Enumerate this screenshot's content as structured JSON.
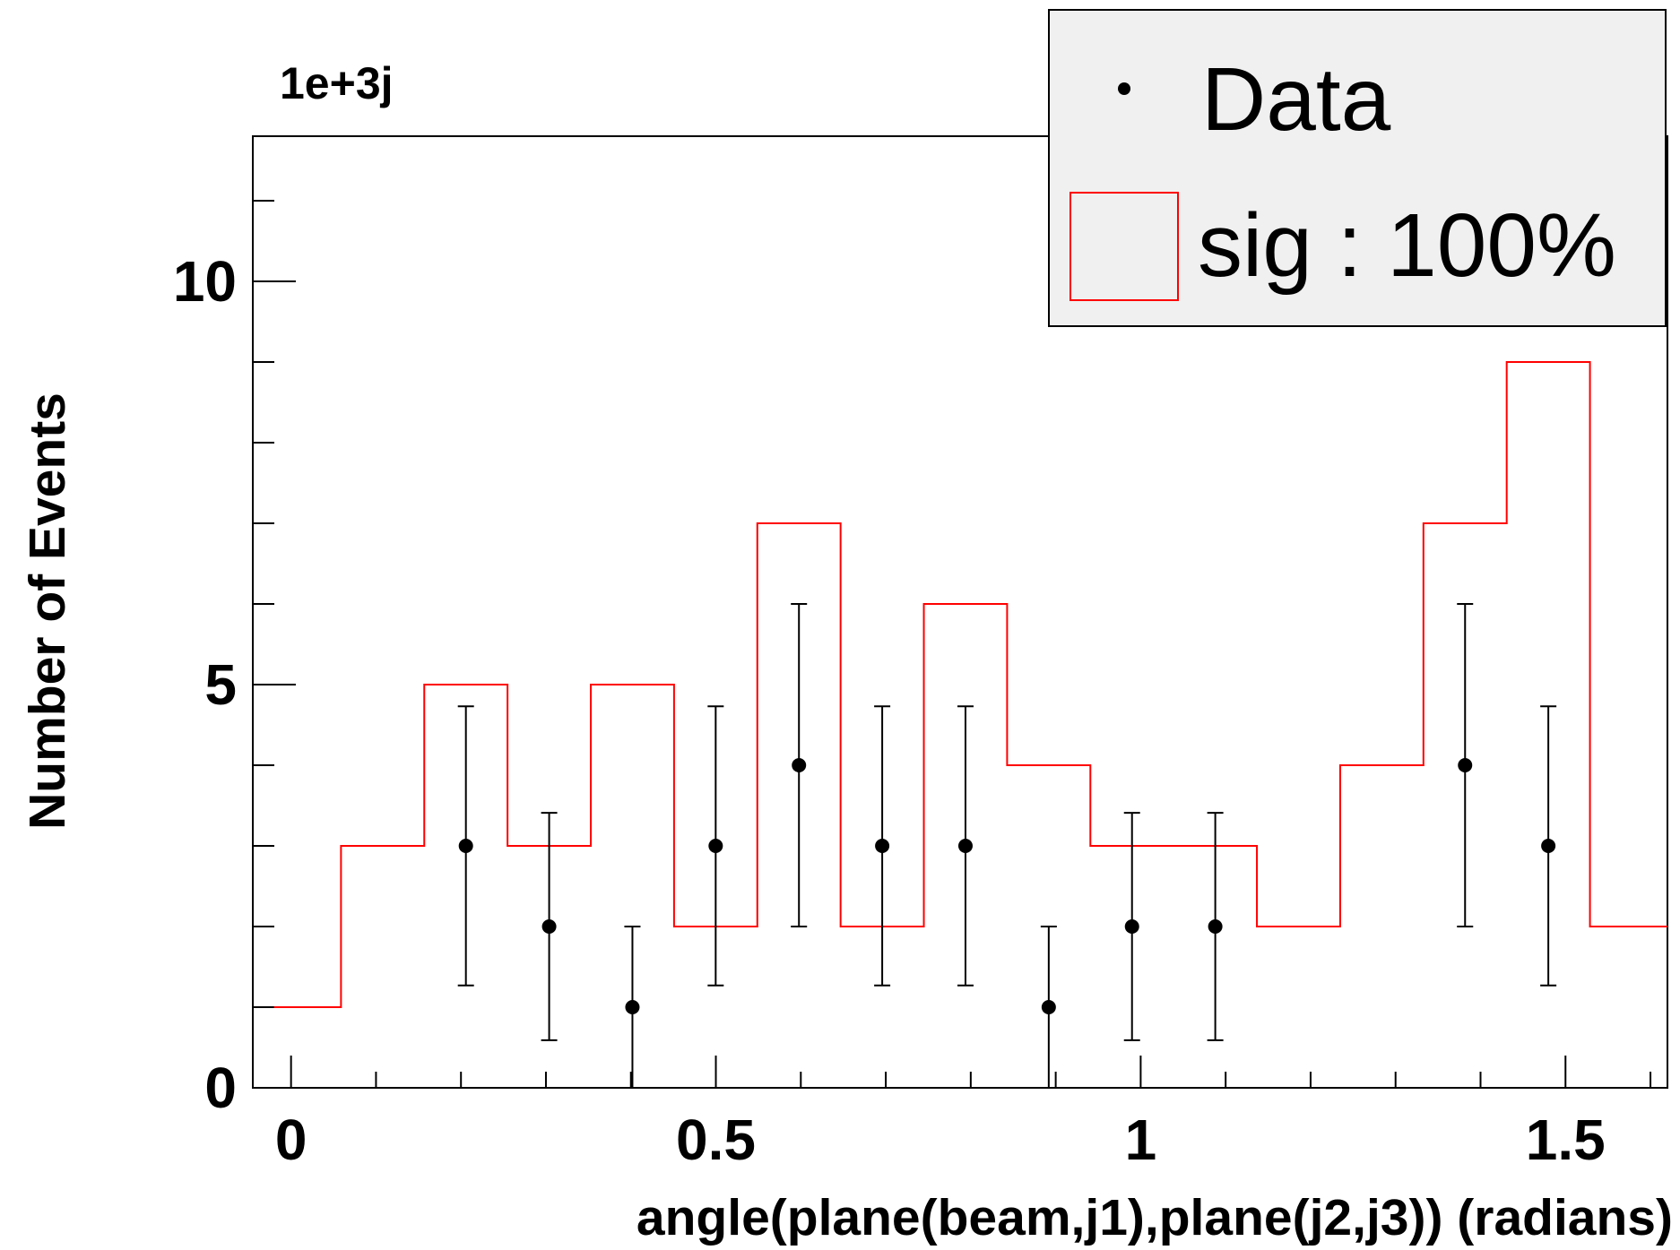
{
  "chart_data": {
    "type": "bar",
    "xlabel": "angle(plane(beam,j1),plane(j2,j3)) (radians)",
    "ylabel": "Number of Events",
    "exponent_label": "1e+3j",
    "xlim": [
      -0.045,
      1.62
    ],
    "ylim": [
      0,
      11.8
    ],
    "x_major_ticks": [
      0,
      0.5,
      1,
      1.5
    ],
    "x_tick_labels": [
      "0",
      "0.5",
      "1",
      "1.5"
    ],
    "y_major_ticks": [
      0,
      5,
      10
    ],
    "y_tick_labels": [
      "0",
      "5",
      "10"
    ],
    "legend_position": "top-right",
    "legend_background": "#f0f0f0",
    "series": [
      {
        "name": "sig : 100%",
        "kind": "step-histogram",
        "color": "#ff0000",
        "bin_edges": [
          -0.02,
          0.0588,
          0.1568,
          0.2548,
          0.3528,
          0.4508,
          0.5488,
          0.6468,
          0.7448,
          0.8428,
          0.9408,
          1.0388,
          1.1368,
          1.2348,
          1.3328,
          1.4308,
          1.5288,
          1.62
        ],
        "values": [
          1,
          3,
          5,
          3,
          5,
          2,
          7,
          2,
          6,
          4,
          3,
          3,
          2,
          4,
          7,
          9,
          2
        ]
      },
      {
        "name": "Data",
        "kind": "points-with-errors",
        "color": "#000000",
        "x": [
          0.2058,
          0.3038,
          0.4018,
          0.4998,
          0.5978,
          0.6958,
          0.7938,
          0.8918,
          0.9898,
          1.0878,
          1.3818,
          1.4798
        ],
        "y": [
          3,
          2,
          1,
          3,
          4,
          3,
          3,
          1,
          2,
          2,
          4,
          3
        ],
        "err_low": [
          1.73,
          1.41,
          1.0,
          1.73,
          2.0,
          1.73,
          1.73,
          1.0,
          1.41,
          1.41,
          2.0,
          1.73
        ],
        "err_high": [
          1.73,
          1.41,
          1.0,
          1.73,
          2.0,
          1.73,
          1.73,
          1.0,
          1.41,
          1.41,
          2.0,
          1.73
        ]
      }
    ]
  }
}
